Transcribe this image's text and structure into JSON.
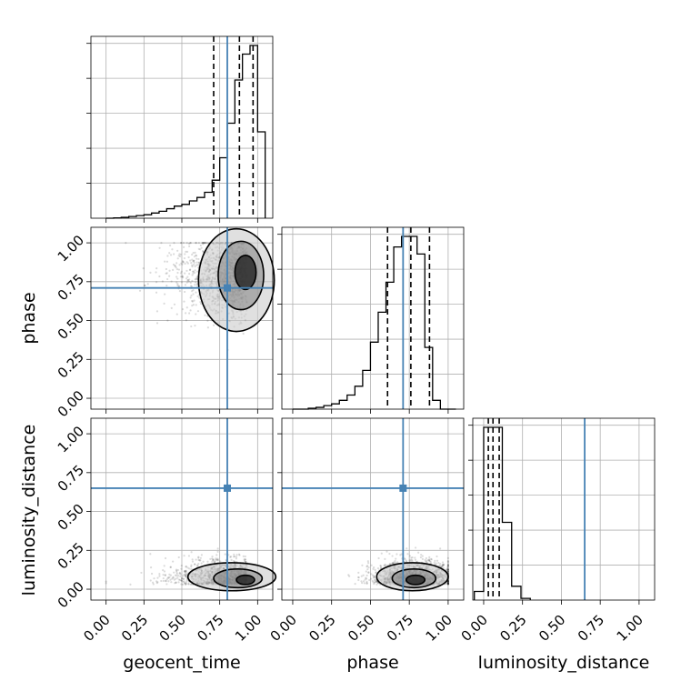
{
  "chart_data": {
    "type": "corner",
    "parameters": [
      "geocent_time",
      "phase",
      "luminosity_distance"
    ],
    "truths": {
      "geocent_time": 0.8,
      "phase": 0.71,
      "luminosity_distance": 0.65
    },
    "tick_labels": [
      "0.00",
      "0.25",
      "0.50",
      "0.75",
      "1.00"
    ],
    "tick_values": [
      0,
      0.25,
      0.5,
      0.75,
      1.0
    ],
    "axis_ranges": {
      "geocent_time": [
        -0.1,
        1.1
      ],
      "phase": [
        -0.07,
        1.1
      ],
      "luminosity_distance": [
        -0.07,
        1.1
      ]
    },
    "truth_color": "#4682b4",
    "grid": true,
    "marginals": {
      "geocent_time": {
        "bin_edges": [
          0.0,
          0.05,
          0.1,
          0.15,
          0.2,
          0.25,
          0.3,
          0.35,
          0.4,
          0.45,
          0.5,
          0.55,
          0.6,
          0.65,
          0.7,
          0.75,
          0.8,
          0.85,
          0.9,
          0.95,
          1.0,
          1.05
        ],
        "heights": [
          0.0,
          0.002,
          0.005,
          0.01,
          0.015,
          0.02,
          0.03,
          0.04,
          0.055,
          0.07,
          0.08,
          0.1,
          0.12,
          0.15,
          0.22,
          0.35,
          0.55,
          0.8,
          0.95,
          1.0,
          0.5
        ],
        "quantiles": [
          0.71,
          0.88,
          0.97
        ]
      },
      "phase": {
        "bin_edges": [
          0.0,
          0.05,
          0.1,
          0.15,
          0.2,
          0.25,
          0.3,
          0.35,
          0.4,
          0.45,
          0.5,
          0.55,
          0.6,
          0.65,
          0.7,
          0.75,
          0.8,
          0.85,
          0.9,
          0.95,
          1.0,
          1.05
        ],
        "heights": [
          0.0,
          0.0,
          0.005,
          0.01,
          0.02,
          0.03,
          0.05,
          0.08,
          0.13,
          0.22,
          0.38,
          0.55,
          0.72,
          0.92,
          0.98,
          0.98,
          0.88,
          0.35,
          0.05,
          0.0,
          0.0
        ],
        "quantiles": [
          0.61,
          0.76,
          0.88
        ]
      },
      "luminosity_distance": {
        "bin_edges": [
          -0.06,
          0.0,
          0.06,
          0.12,
          0.18,
          0.24,
          0.3
        ],
        "heights": [
          0.05,
          1.0,
          1.0,
          0.45,
          0.08,
          0.01
        ],
        "quantiles": [
          0.03,
          0.06,
          0.1
        ]
      }
    }
  }
}
